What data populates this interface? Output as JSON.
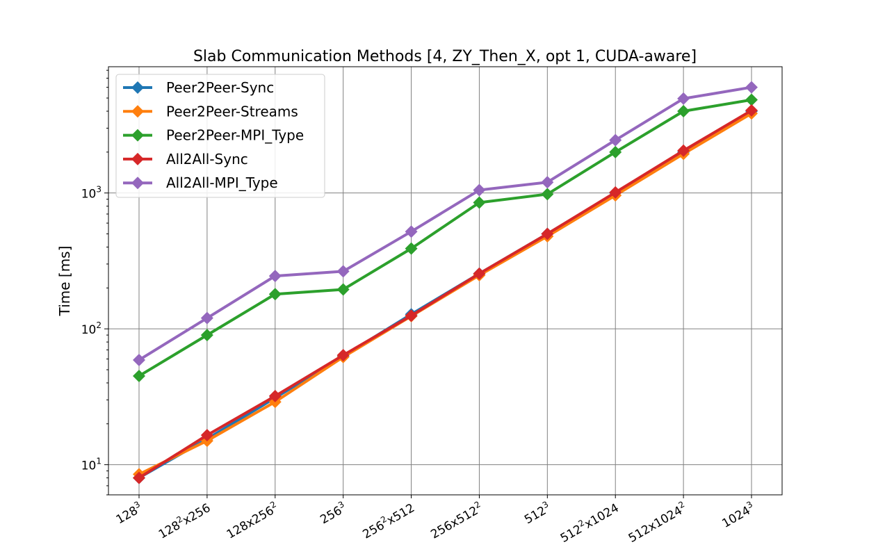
{
  "chart_data": {
    "type": "line",
    "title": "Slab Communication Methods [4, ZY_Then_X, opt 1, CUDA-aware]",
    "xlabel": "",
    "ylabel": "Time [ms]",
    "yscale": "log",
    "ylim": [
      6,
      8500
    ],
    "grid": true,
    "legend_position": "top-left",
    "categories": [
      {
        "base": "128",
        "sup": "3",
        "rest": ""
      },
      {
        "base": "128",
        "sup": "2",
        "rest": "x256"
      },
      {
        "base": "128x256",
        "sup": "2",
        "rest": ""
      },
      {
        "base": "256",
        "sup": "3",
        "rest": ""
      },
      {
        "base": "256",
        "sup": "2",
        "rest": "x512"
      },
      {
        "base": "256x512",
        "sup": "2",
        "rest": ""
      },
      {
        "base": "512",
        "sup": "3",
        "rest": ""
      },
      {
        "base": "512",
        "sup": "2",
        "rest": "x1024"
      },
      {
        "base": "512x1024",
        "sup": "2",
        "rest": ""
      },
      {
        "base": "1024",
        "sup": "3",
        "rest": ""
      }
    ],
    "y_ticks": [
      {
        "value": 10,
        "base": "10",
        "sup": "1"
      },
      {
        "value": 100,
        "base": "10",
        "sup": "2"
      },
      {
        "value": 1000,
        "base": "10",
        "sup": "3"
      }
    ],
    "series": [
      {
        "name": "Peer2Peer-Sync",
        "color": "#1f77b4",
        "values": [
          8.0,
          15.5,
          31,
          63,
          128,
          255,
          500,
          1000,
          2000,
          4000
        ]
      },
      {
        "name": "Peer2Peer-Streams",
        "color": "#ff7f0e",
        "values": [
          8.5,
          15.0,
          29,
          62,
          124,
          248,
          480,
          960,
          1940,
          3850
        ]
      },
      {
        "name": "Peer2Peer-MPI_Type",
        "color": "#2ca02c",
        "values": [
          45,
          90,
          180,
          195,
          390,
          850,
          980,
          2000,
          4000,
          4850
        ]
      },
      {
        "name": "All2All-Sync",
        "color": "#d62728",
        "values": [
          8.0,
          16.5,
          32,
          64,
          125,
          255,
          500,
          1010,
          2050,
          4050
        ]
      },
      {
        "name": "All2All-MPI_Type",
        "color": "#9467bd",
        "values": [
          59,
          120,
          245,
          265,
          520,
          1050,
          1200,
          2450,
          4950,
          6000
        ]
      }
    ]
  }
}
